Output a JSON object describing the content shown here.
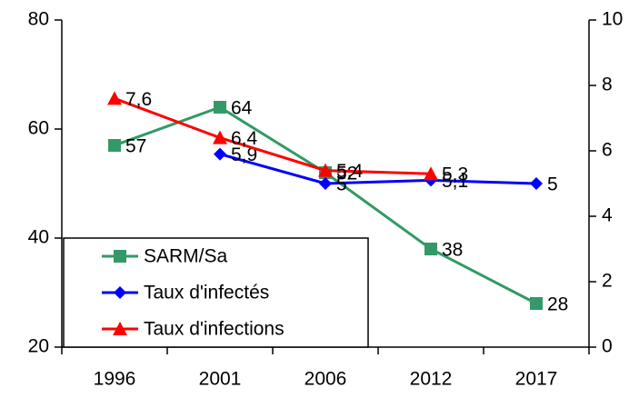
{
  "chart_data": {
    "type": "line",
    "categories": [
      "1996",
      "2001",
      "2006",
      "2012",
      "2017"
    ],
    "ylim": [
      20,
      80
    ],
    "yticks": [
      20,
      40,
      60,
      80
    ],
    "y2lim": [
      0,
      10
    ],
    "y2ticks": [
      0,
      2,
      4,
      6,
      8,
      10
    ],
    "grid": false,
    "legend": "lower left",
    "series": [
      {
        "name": "SARM/Sa",
        "color": "#339966",
        "marker": "square",
        "values": [
          57,
          64,
          52,
          38,
          28
        ]
      },
      {
        "name": "Taux d'infectés",
        "color": "#0000ff",
        "marker": "diamond",
        "axis": "y2",
        "values": [
          null,
          5.9,
          5,
          5.1,
          5
        ],
        "value_labels": [
          null,
          "5,9",
          "5",
          "5,1",
          "5"
        ]
      },
      {
        "name": "Taux d'infections",
        "color": "#ff0000",
        "marker": "triangle",
        "axis": "y2",
        "values": [
          7.6,
          6.4,
          5.4,
          5.3,
          null
        ],
        "value_labels": [
          "7,6",
          "6,4",
          "5,4",
          "5,3",
          null
        ]
      }
    ]
  }
}
